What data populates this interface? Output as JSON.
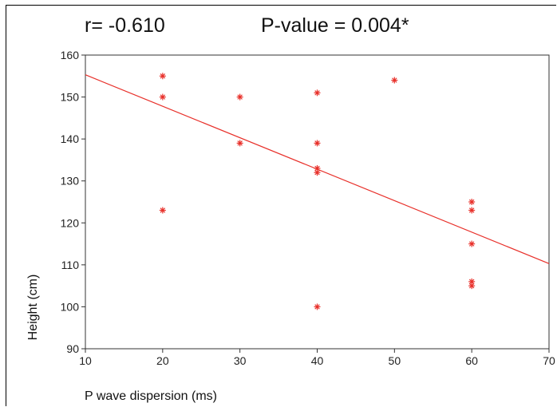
{
  "chart_data": {
    "type": "scatter",
    "title_left": "r= -0.610",
    "title_right": "P-value = 0.004*",
    "xlabel": "P wave dispersion  (ms)",
    "ylabel": "Height (cm)",
    "xlim": [
      10,
      70
    ],
    "ylim": [
      90,
      160
    ],
    "xticks": [
      10,
      20,
      30,
      40,
      50,
      60,
      70
    ],
    "xtick_labels": [
      "10",
      "20",
      "30",
      "40",
      "50",
      "60",
      "70"
    ],
    "yticks": [
      90,
      100,
      110,
      120,
      130,
      140,
      150,
      160
    ],
    "ytick_labels": [
      "90",
      "100",
      "110",
      "120",
      "130",
      "140",
      "150",
      "160"
    ],
    "marker": "asterisk",
    "color": "#e8302a",
    "points": [
      {
        "x": 20,
        "y": 155
      },
      {
        "x": 20,
        "y": 150
      },
      {
        "x": 20,
        "y": 123
      },
      {
        "x": 30,
        "y": 150
      },
      {
        "x": 30,
        "y": 139
      },
      {
        "x": 40,
        "y": 151
      },
      {
        "x": 40,
        "y": 139
      },
      {
        "x": 40,
        "y": 133
      },
      {
        "x": 40,
        "y": 132
      },
      {
        "x": 40,
        "y": 100
      },
      {
        "x": 50,
        "y": 154
      },
      {
        "x": 60,
        "y": 125
      },
      {
        "x": 60,
        "y": 123
      },
      {
        "x": 60,
        "y": 115
      },
      {
        "x": 60,
        "y": 106
      },
      {
        "x": 60,
        "y": 105
      }
    ],
    "fit_line": {
      "x": [
        10,
        70
      ],
      "y": [
        155.3,
        110.3
      ]
    }
  }
}
